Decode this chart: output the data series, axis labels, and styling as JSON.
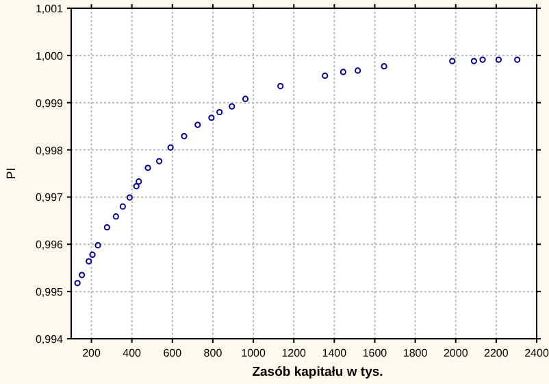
{
  "chart_data": {
    "type": "scatter",
    "xlabel": "Zasób kapitału w tys.",
    "ylabel": "PI",
    "x": [
      131,
      153,
      187,
      205,
      232,
      277,
      321,
      355,
      389,
      422,
      434,
      479,
      535,
      591,
      658,
      725,
      793,
      833,
      894,
      961,
      1134,
      1354,
      1444,
      1516,
      1646,
      1983,
      2090,
      2133,
      2212,
      2304
    ],
    "series": [
      {
        "color": "#00008b",
        "values": [
          0.99518,
          0.99535,
          0.99564,
          0.99578,
          0.99598,
          0.99636,
          0.99659,
          0.9968,
          0.99699,
          0.99723,
          0.99733,
          0.99762,
          0.99776,
          0.99805,
          0.99829,
          0.99853,
          0.99868,
          0.9988,
          0.99892,
          0.99908,
          0.99935,
          0.99957,
          0.99965,
          0.99968,
          0.99977,
          0.99988,
          0.99988,
          0.99991,
          0.99991,
          0.99991
        ]
      }
    ],
    "xlim": [
      100,
      2400
    ],
    "xticks": [
      200,
      400,
      600,
      800,
      1000,
      1200,
      1400,
      1600,
      1800,
      2000,
      2200,
      2400
    ],
    "ylim": [
      0.994,
      1.001
    ],
    "yticks": [
      {
        "value": 0.994,
        "label": "0,994"
      },
      {
        "value": 0.995,
        "label": "0,995"
      },
      {
        "value": 0.996,
        "label": "0,996"
      },
      {
        "value": 0.997,
        "label": "0,997"
      },
      {
        "value": 0.998,
        "label": "0,998"
      },
      {
        "value": 0.999,
        "label": "0,999"
      },
      {
        "value": 1.0,
        "label": "1,000"
      },
      {
        "value": 1.001,
        "label": "1,001"
      }
    ],
    "grid": true,
    "marker": "circle"
  }
}
